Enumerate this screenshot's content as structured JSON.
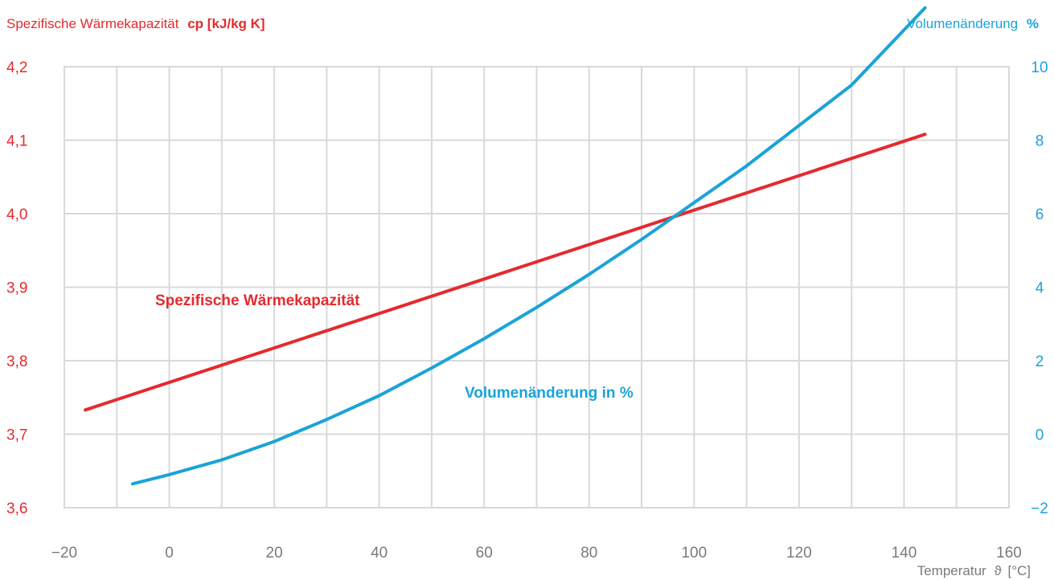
{
  "chart_data": {
    "type": "line",
    "left_axis": {
      "title_text": "Spezifische Wärmekapazität",
      "title_unit": "cp [kJ/kg K]",
      "ticks": [
        "3,6",
        "3,7",
        "3,8",
        "3,9",
        "4,0",
        "4,1",
        "4,2"
      ],
      "ylim": [
        3.6,
        4.2
      ],
      "color": "#e52a2e"
    },
    "right_axis": {
      "title_text": "Volumenänderung",
      "title_unit": "%",
      "ticks": [
        "−2",
        "0",
        "2",
        "4",
        "6",
        "8",
        "10"
      ],
      "ylim": [
        -2,
        10
      ],
      "color": "#1aa3d8"
    },
    "x_axis": {
      "label_text": "Temperatur",
      "label_symbol": "ϑ",
      "label_unit": "[°C]",
      "ticks": [
        "−20",
        "0",
        "20",
        "40",
        "60",
        "80",
        "100",
        "120",
        "140",
        "160"
      ],
      "xlim": [
        -20,
        160
      ],
      "color": "#7a7a7a"
    },
    "grid": true,
    "series": [
      {
        "name": "Spezifische Wärmekapazität",
        "axis": "left",
        "color": "#e52a2e",
        "x": [
          -16,
          144
        ],
        "y": [
          3.733,
          4.108
        ]
      },
      {
        "name": "Volumenänderung in %",
        "axis": "right",
        "color": "#1aa3d8",
        "x": [
          -7,
          0,
          10,
          20,
          30,
          40,
          50,
          60,
          70,
          80,
          90,
          100,
          110,
          120,
          130,
          144
        ],
        "y": [
          -1.35,
          -1.1,
          -0.7,
          -0.2,
          0.4,
          1.05,
          1.8,
          2.6,
          3.45,
          4.35,
          5.3,
          6.3,
          7.3,
          8.4,
          9.5,
          11.6
        ]
      }
    ]
  }
}
